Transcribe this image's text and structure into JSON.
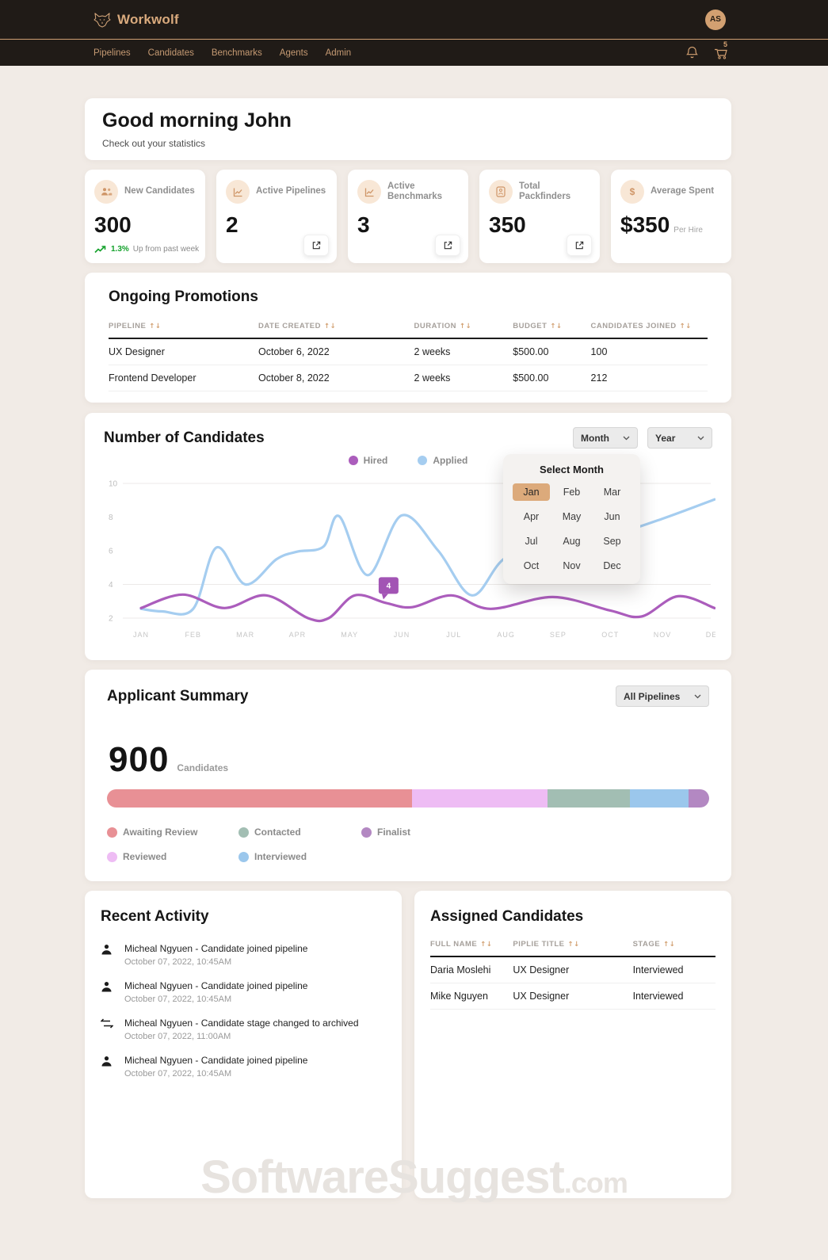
{
  "header": {
    "brand": "Workwolf",
    "avatar": "AS",
    "cart_badge": "5",
    "nav": [
      "Pipelines",
      "Candidates",
      "Benchmarks",
      "Agents",
      "Admin"
    ]
  },
  "greeting": {
    "title": "Good morning John",
    "subtitle": "Check out your statistics"
  },
  "stats": [
    {
      "label": "New Candidates",
      "value": "300",
      "icon": "users-icon",
      "trend_percent": "1.3%",
      "trend_text": "Up from past week"
    },
    {
      "label": "Active Pipelines",
      "value": "2",
      "icon": "chart-icon",
      "external_link": true
    },
    {
      "label": "Active Benchmarks",
      "value": "3",
      "icon": "chart-icon",
      "external_link": true
    },
    {
      "label": "Total Packfinders",
      "value": "350",
      "icon": "badge-icon",
      "external_link": true
    },
    {
      "label": "Average Spent",
      "value": "$350",
      "suffix": "Per Hire",
      "icon": "dollar-icon"
    }
  ],
  "promotions": {
    "title": "Ongoing Promotions",
    "columns": [
      "PIPELINE",
      "DATE CREATED",
      "DURATION",
      "BUDGET",
      "CANDIDATES JOINED"
    ],
    "col_widths": [
      "25%",
      "26%",
      "16.5%",
      "13%",
      "19.5%"
    ],
    "rows": [
      [
        "UX Designer",
        "October 6, 2022",
        "2 weeks",
        "$500.00",
        "100"
      ],
      [
        "Frontend Developer",
        "October 8, 2022",
        "2 weeks",
        "$500.00",
        "212"
      ]
    ]
  },
  "chart": {
    "title": "Number of Candidates",
    "month_filter_label": "Month",
    "year_filter_label": "Year",
    "month_picker": {
      "title": "Select Month",
      "selected": "Jan",
      "months": [
        "Jan",
        "Feb",
        "Mar",
        "Apr",
        "May",
        "Jun",
        "Jul",
        "Aug",
        "Sep",
        "Oct",
        "Nov",
        "Dec"
      ]
    }
  },
  "chart_data": [
    {
      "type": "line",
      "title": "Number of Candidates",
      "categories": [
        "JAN",
        "FEB",
        "MAR",
        "APR",
        "MAY",
        "JUN",
        "JUL",
        "AUG",
        "SEP",
        "OCT",
        "NOV",
        "DEC"
      ],
      "ylim": [
        2,
        10
      ],
      "yticks": [
        2,
        4,
        6,
        8,
        10
      ],
      "gridlines_at": [
        10,
        4,
        2
      ],
      "legend_position": "top-center",
      "series": [
        {
          "name": "Applied",
          "color": "#a5cdf0",
          "points": [
            [
              0,
              2.55
            ],
            [
              0.4,
              2.4
            ],
            [
              1,
              2.55
            ],
            [
              1.45,
              6.2
            ],
            [
              2,
              4.0
            ],
            [
              2.6,
              5.5
            ],
            [
              3,
              5.95
            ],
            [
              3.5,
              6.25
            ],
            [
              3.8,
              8.05
            ],
            [
              4.35,
              4.55
            ],
            [
              5,
              8.1
            ],
            [
              5.7,
              6.0
            ],
            [
              6.35,
              3.35
            ],
            [
              7,
              5.6
            ],
            [
              8,
              6.3
            ],
            [
              9,
              6.9
            ],
            [
              10,
              7.9
            ],
            [
              11,
              9.05
            ]
          ]
        },
        {
          "name": "Hired",
          "color": "#ab5dbc",
          "points": [
            [
              0,
              2.6
            ],
            [
              0.8,
              3.4
            ],
            [
              1.6,
              2.6
            ],
            [
              2.4,
              3.35
            ],
            [
              3.2,
              2.0
            ],
            [
              3.6,
              2.0
            ],
            [
              4.1,
              3.35
            ],
            [
              4.7,
              2.9
            ],
            [
              5.2,
              2.65
            ],
            [
              5.95,
              3.35
            ],
            [
              6.7,
              2.55
            ],
            [
              7.9,
              3.25
            ],
            [
              9.0,
              2.45
            ],
            [
              9.6,
              2.1
            ],
            [
              10.3,
              3.3
            ],
            [
              11,
              2.6
            ]
          ]
        }
      ],
      "tooltip": {
        "label": "4",
        "x": 4.74,
        "y": 3.3,
        "color": "#a254b4"
      }
    },
    {
      "type": "stacked-bar",
      "title": "Applicant Summary",
      "total": "900",
      "unit": "Candidates",
      "segments": [
        {
          "label": "Awaiting Review",
          "color": "#e89095",
          "percent": 50.6
        },
        {
          "label": "Reviewed",
          "color": "#eebcf4",
          "percent": 22.6
        },
        {
          "label": "Contacted",
          "color": "#a2beb3",
          "percent": 13.6
        },
        {
          "label": "Interviewed",
          "color": "#9bc7ec",
          "percent": 9.8
        },
        {
          "label": "Finalist",
          "color": "#b388c2",
          "percent": 3.4
        }
      ]
    }
  ],
  "summary": {
    "title": "Applicant Summary",
    "pipeline_filter_label": "All Pipelines",
    "total": "900",
    "unit": "Candidates",
    "legend_order": [
      "Awaiting Review",
      "Contacted",
      "Finalist",
      "Reviewed",
      "Interviewed"
    ]
  },
  "recent_activity": {
    "title": "Recent Activity",
    "items": [
      {
        "icon": "person-icon",
        "text": "Micheal Ngyuen - Candidate joined pipeline",
        "date": "October 07, 2022, 10:45AM"
      },
      {
        "icon": "person-icon",
        "text": "Micheal Ngyuen - Candidate joined pipeline",
        "date": "October 07, 2022, 10:45AM"
      },
      {
        "icon": "swap-icon",
        "text": "Micheal Ngyuen - Candidate stage changed to archived",
        "date": "October 07, 2022, 11:00AM"
      },
      {
        "icon": "person-icon",
        "text": "Micheal Ngyuen - Candidate joined pipeline",
        "date": "October 07, 2022, 10:45AM"
      }
    ]
  },
  "assigned": {
    "title": "Assigned Candidates",
    "columns": [
      "FULL NAME",
      "PIPLIE TITLE",
      "STAGE"
    ],
    "col_widths": [
      "29%",
      "42%",
      "29%"
    ],
    "rows": [
      [
        "Daria Moslehi",
        "UX Designer",
        "Interviewed"
      ],
      [
        "Mike Nguyen",
        "UX Designer",
        "Interviewed"
      ]
    ]
  },
  "watermark": {
    "text": "SoftwareSuggest",
    "suffix": ".com"
  }
}
